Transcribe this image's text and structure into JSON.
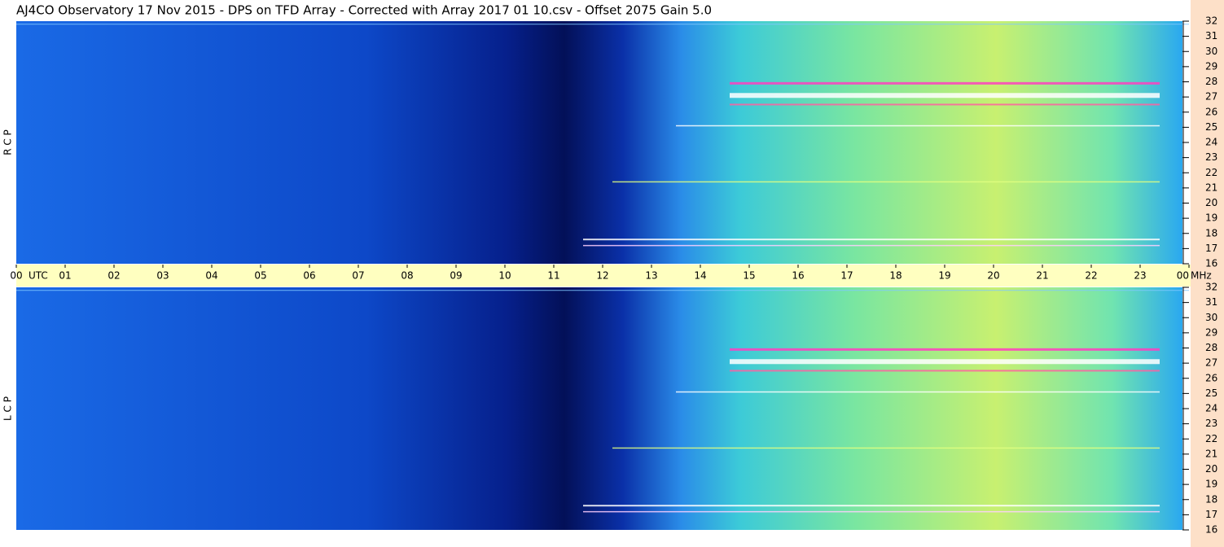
{
  "title": "AJ4CO Observatory  17 Nov 2015  -  DPS on TFD Array  -  Corrected with Array 2017 01 10.csv  -  Offset 2075  Gain 5.0",
  "time_axis": {
    "label": "UTC",
    "unit": "MHz",
    "xlim": [
      0,
      24
    ],
    "xticks": [
      {
        "value": 0,
        "label": "00"
      },
      {
        "value": 1,
        "label": "01"
      },
      {
        "value": 2,
        "label": "02"
      },
      {
        "value": 3,
        "label": "03"
      },
      {
        "value": 4,
        "label": "04"
      },
      {
        "value": 5,
        "label": "05"
      },
      {
        "value": 6,
        "label": "06"
      },
      {
        "value": 7,
        "label": "07"
      },
      {
        "value": 8,
        "label": "08"
      },
      {
        "value": 9,
        "label": "09"
      },
      10,
      11,
      12,
      13,
      14,
      15,
      16,
      17,
      18,
      19,
      20,
      21,
      22,
      23,
      {
        "value": 24,
        "label": "00"
      }
    ]
  },
  "chart_data": [
    {
      "type": "spectrogram",
      "ylabel": "R C P",
      "ylim": [
        16,
        32
      ],
      "yticks": [
        16,
        17,
        18,
        19,
        20,
        21,
        22,
        23,
        24,
        25,
        26,
        27,
        28,
        29,
        30,
        31,
        32
      ]
    },
    {
      "type": "spectrogram",
      "ylabel": "L C P",
      "ylim": [
        16,
        32
      ],
      "yticks": [
        16,
        17,
        18,
        19,
        20,
        21,
        22,
        23,
        24,
        25,
        26,
        27,
        28,
        29,
        30,
        31,
        32
      ]
    }
  ]
}
